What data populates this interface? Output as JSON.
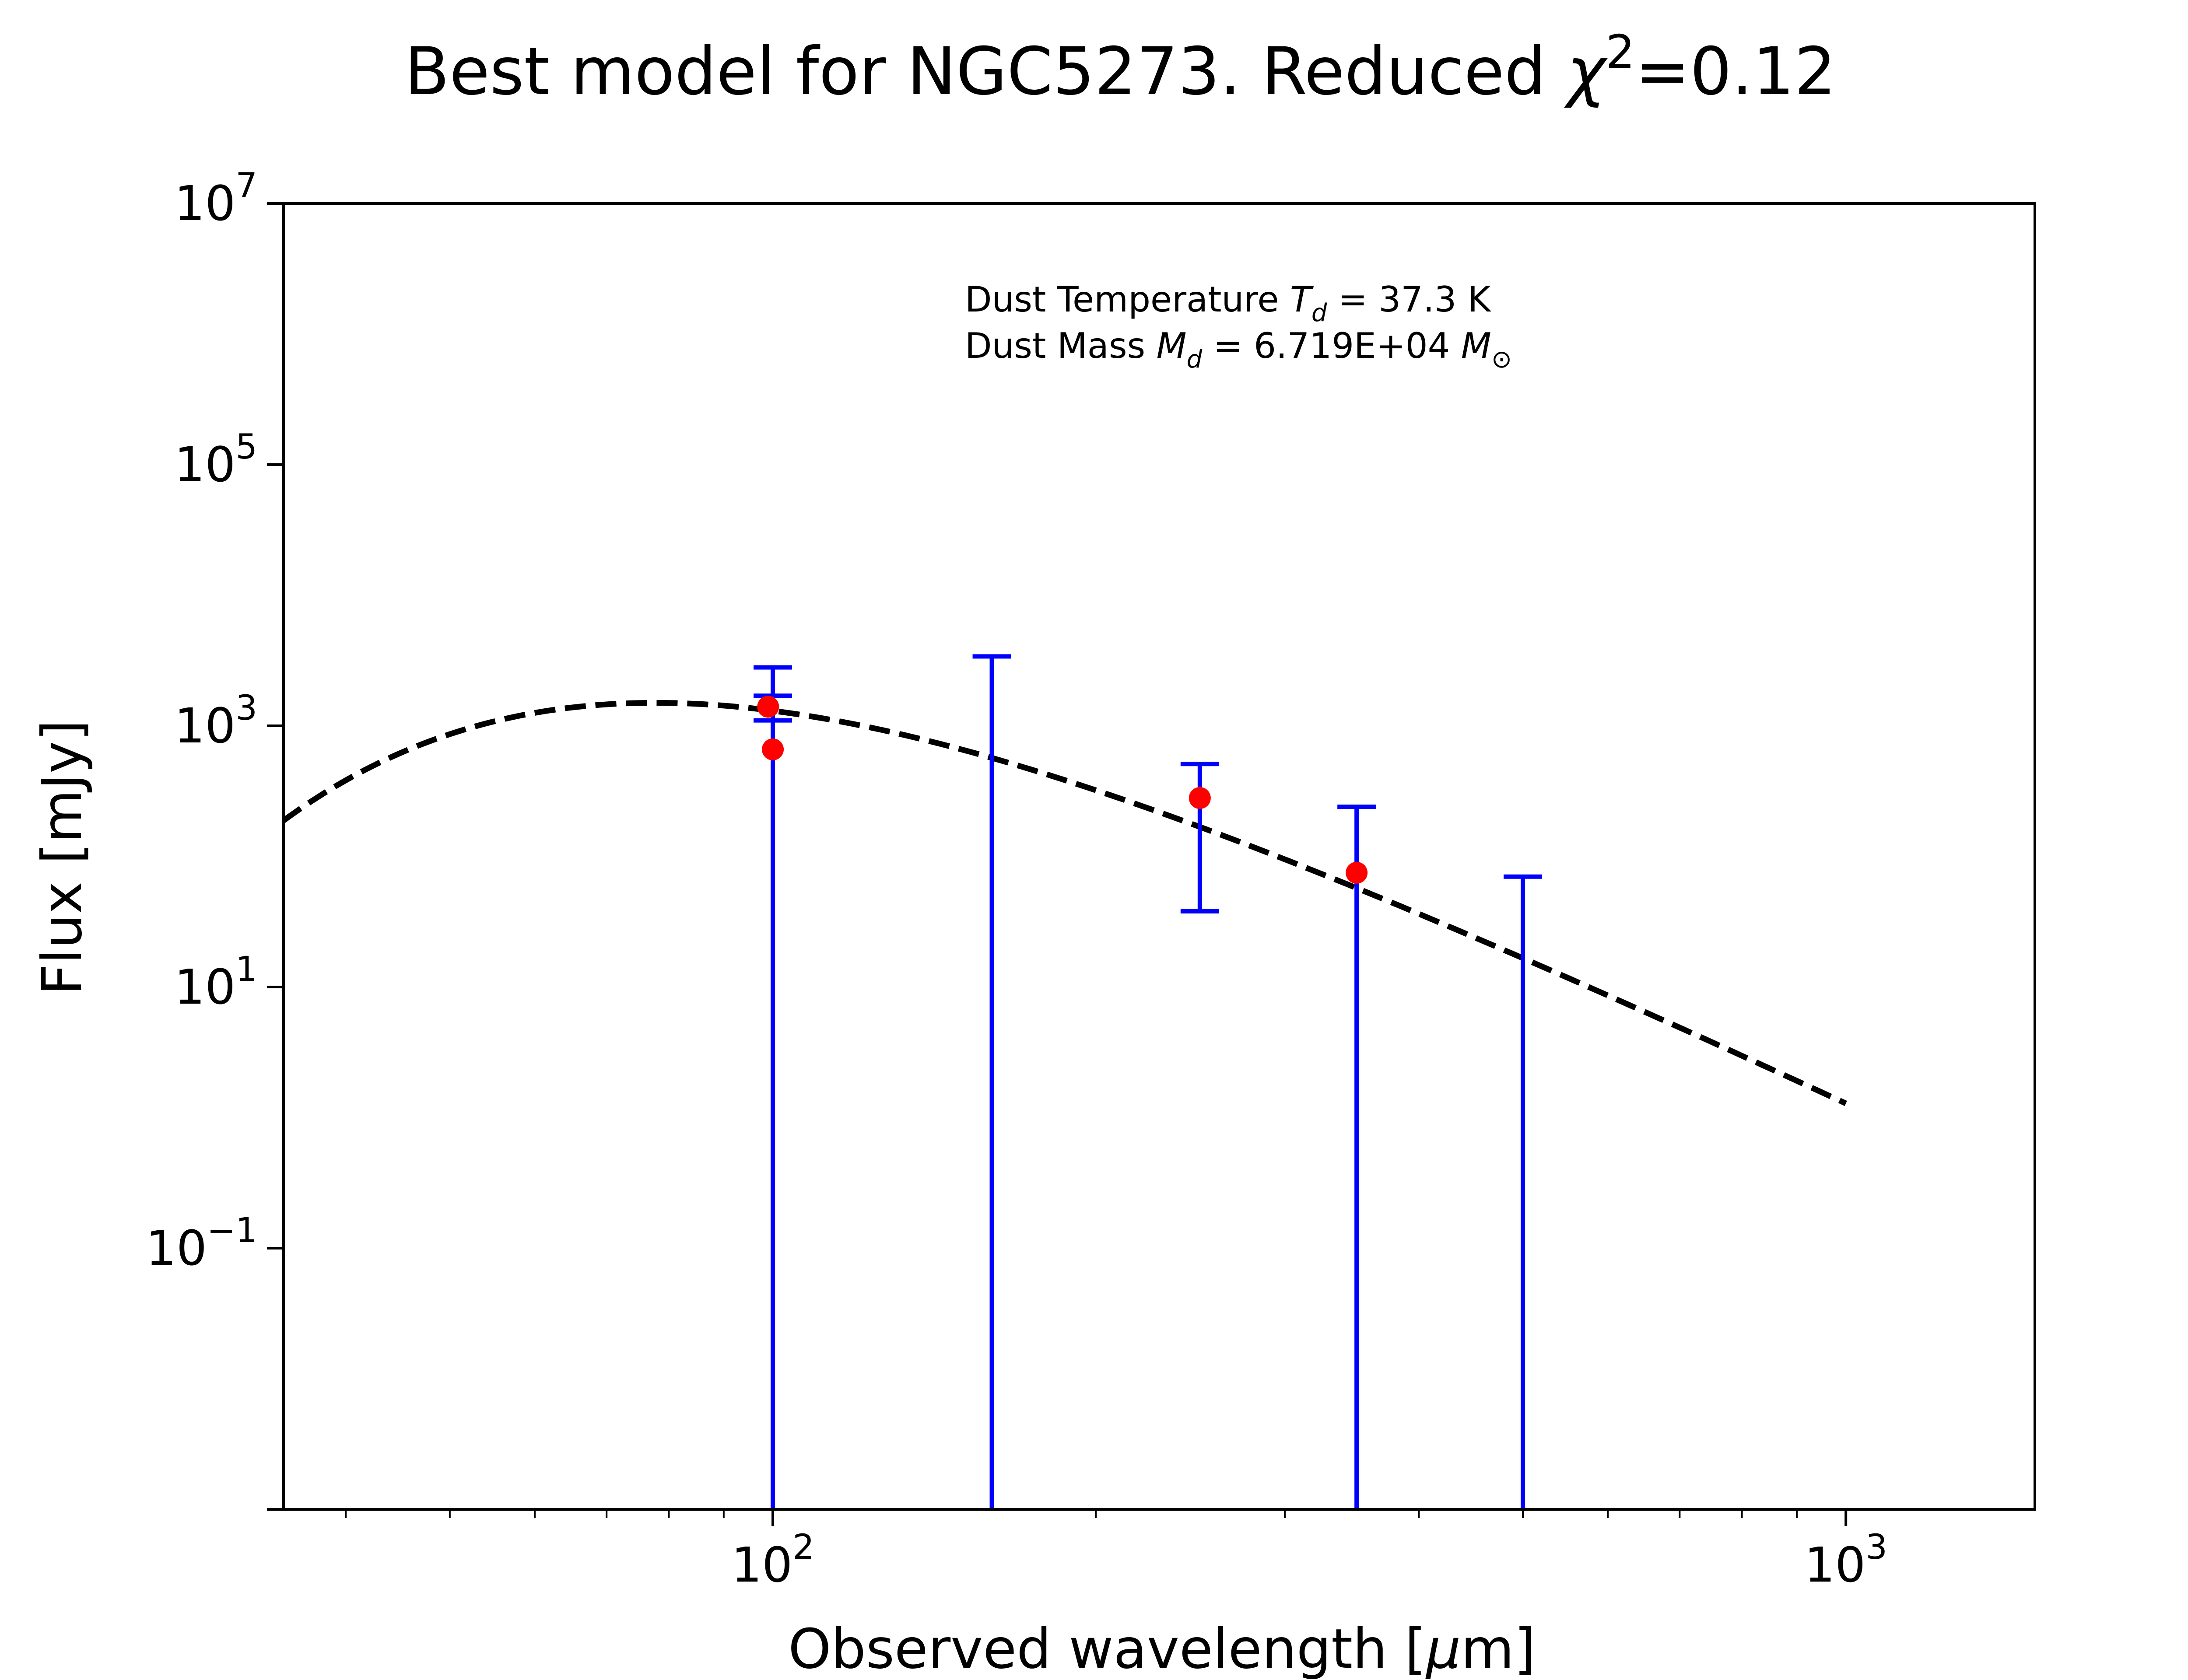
{
  "chart_data": {
    "type": "scatter",
    "title_prefix": "Best model for NGC5273. Reduced ",
    "title_chi": "χ",
    "title_chi_exp": "2",
    "title_value": "=0.12",
    "xlabel_prefix": "Observed wavelength [",
    "xlabel_mu": "μ",
    "xlabel_suffix": "m]",
    "ylabel": "Flux [mJy]",
    "x_scale": "log",
    "y_scale": "log",
    "xlim": [
      35,
      1500
    ],
    "ylim": [
      0.001,
      10000000
    ],
    "x_ticks": [
      {
        "value": 100,
        "base": "10",
        "exp": "2"
      },
      {
        "value": 1000,
        "base": "10",
        "exp": "3"
      }
    ],
    "y_ticks": [
      {
        "value": 0.1,
        "base": "10",
        "exp": "−1"
      },
      {
        "value": 10,
        "base": "10",
        "exp": "1"
      },
      {
        "value": 1000,
        "base": "10",
        "exp": "3"
      },
      {
        "value": 100000,
        "base": "10",
        "exp": "5"
      },
      {
        "value": 10000000,
        "base": "10",
        "exp": "7"
      }
    ],
    "annotation": {
      "line1_prefix": "Dust Temperature ",
      "line1_sym": "T",
      "line1_sub": "d",
      "line1_value": " = 37.3 K",
      "line2_prefix": "Dust Mass ",
      "line2_sym": "M",
      "line2_sub": "d",
      "line2_value": " = 6.719E+04 ",
      "line2_unit": "M",
      "line2_unit_sub": "⊙"
    },
    "model_curve": {
      "style": "dashed",
      "color": "#000000",
      "x_range": [
        35,
        1000
      ],
      "T_dust": 37.3,
      "beta": 2,
      "peak_flux": 1500
    },
    "detections": {
      "color": "#ff0000",
      "points": [
        {
          "x": 99,
          "y": 1400
        },
        {
          "x": 100,
          "y": 660
        },
        {
          "x": 250,
          "y": 280
        },
        {
          "x": 350,
          "y": 75
        }
      ]
    },
    "error_bars": {
      "color": "#0000ff",
      "bars": [
        {
          "x": 100,
          "low": 1100,
          "high": 1700,
          "clipped": false
        },
        {
          "x": 100,
          "low": 0.001,
          "high": 2800,
          "clipped": true
        },
        {
          "x": 160,
          "low": 0.001,
          "high": 3400,
          "clipped": true
        },
        {
          "x": 250,
          "low": 38,
          "high": 510,
          "clipped": false
        },
        {
          "x": 350,
          "low": 0.001,
          "high": 240,
          "clipped": true
        },
        {
          "x": 500,
          "low": 0.001,
          "high": 70,
          "clipped": true
        }
      ]
    }
  }
}
